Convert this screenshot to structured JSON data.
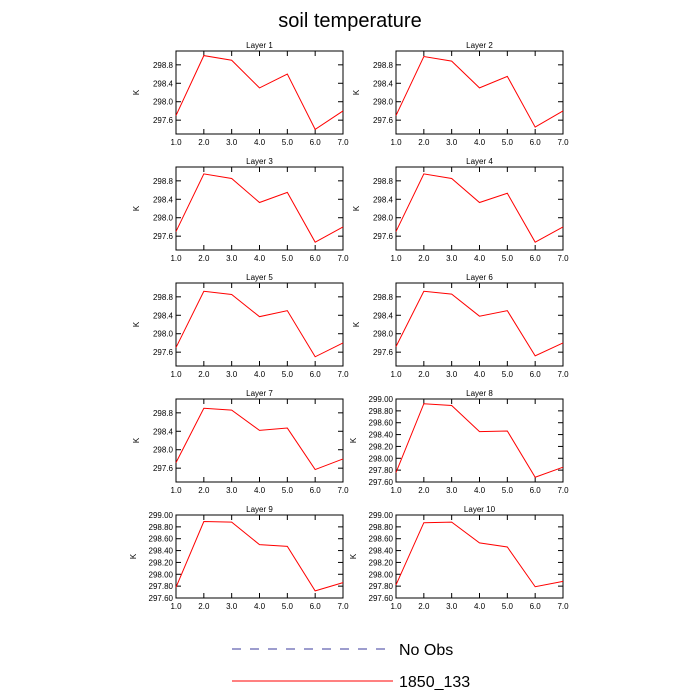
{
  "title": "soil temperature",
  "legend": {
    "items": [
      {
        "label": "No Obs",
        "style": "dashed",
        "color": "#3b3b9e"
      },
      {
        "label": "1850_133",
        "style": "solid",
        "color": "#ff0000"
      }
    ]
  },
  "chart_data": [
    {
      "type": "line",
      "title": "Layer 1",
      "ylabel": "K",
      "x": [
        1.0,
        2.0,
        3.0,
        4.0,
        5.0,
        6.0,
        7.0
      ],
      "xlim": [
        1.0,
        7.0
      ],
      "xticks": [
        "1.0",
        "2.0",
        "3.0",
        "4.0",
        "5.0",
        "6.0",
        "7.0"
      ],
      "ylim": [
        297.3,
        299.1
      ],
      "yticks": [
        297.6,
        298.0,
        298.4,
        298.8
      ],
      "ytick_labels": [
        "297.6",
        "298.0",
        "298.4",
        "298.8"
      ],
      "series": [
        {
          "name": "1850_133",
          "values": [
            297.7,
            299.0,
            298.9,
            298.3,
            298.6,
            297.4,
            297.8
          ]
        }
      ]
    },
    {
      "type": "line",
      "title": "Layer 2",
      "ylabel": "K",
      "x": [
        1.0,
        2.0,
        3.0,
        4.0,
        5.0,
        6.0,
        7.0
      ],
      "xlim": [
        1.0,
        7.0
      ],
      "xticks": [
        "1.0",
        "2.0",
        "3.0",
        "4.0",
        "5.0",
        "6.0",
        "7.0"
      ],
      "ylim": [
        297.3,
        299.1
      ],
      "yticks": [
        297.6,
        298.0,
        298.4,
        298.8
      ],
      "ytick_labels": [
        "297.6",
        "298.0",
        "298.4",
        "298.8"
      ],
      "series": [
        {
          "name": "1850_133",
          "values": [
            297.7,
            298.98,
            298.88,
            298.3,
            298.55,
            297.45,
            297.8
          ]
        }
      ]
    },
    {
      "type": "line",
      "title": "Layer 3",
      "ylabel": "K",
      "x": [
        1.0,
        2.0,
        3.0,
        4.0,
        5.0,
        6.0,
        7.0
      ],
      "xlim": [
        1.0,
        7.0
      ],
      "xticks": [
        "1.0",
        "2.0",
        "3.0",
        "4.0",
        "5.0",
        "6.0",
        "7.0"
      ],
      "ylim": [
        297.3,
        299.1
      ],
      "yticks": [
        297.6,
        298.0,
        298.4,
        298.8
      ],
      "ytick_labels": [
        "297.6",
        "298.0",
        "298.4",
        "298.8"
      ],
      "series": [
        {
          "name": "1850_133",
          "values": [
            297.7,
            298.95,
            298.85,
            298.33,
            298.55,
            297.47,
            297.8
          ]
        }
      ]
    },
    {
      "type": "line",
      "title": "Layer 4",
      "ylabel": "K",
      "x": [
        1.0,
        2.0,
        3.0,
        4.0,
        5.0,
        6.0,
        7.0
      ],
      "xlim": [
        1.0,
        7.0
      ],
      "xticks": [
        "1.0",
        "2.0",
        "3.0",
        "4.0",
        "5.0",
        "6.0",
        "7.0"
      ],
      "ylim": [
        297.3,
        299.1
      ],
      "yticks": [
        297.6,
        298.0,
        298.4,
        298.8
      ],
      "ytick_labels": [
        "297.6",
        "298.0",
        "298.4",
        "298.8"
      ],
      "series": [
        {
          "name": "1850_133",
          "values": [
            297.7,
            298.95,
            298.85,
            298.33,
            298.53,
            297.47,
            297.8
          ]
        }
      ]
    },
    {
      "type": "line",
      "title": "Layer 5",
      "ylabel": "K",
      "x": [
        1.0,
        2.0,
        3.0,
        4.0,
        5.0,
        6.0,
        7.0
      ],
      "xlim": [
        1.0,
        7.0
      ],
      "xticks": [
        "1.0",
        "2.0",
        "3.0",
        "4.0",
        "5.0",
        "6.0",
        "7.0"
      ],
      "ylim": [
        297.3,
        299.1
      ],
      "yticks": [
        297.6,
        298.0,
        298.4,
        298.8
      ],
      "ytick_labels": [
        "297.6",
        "298.0",
        "298.4",
        "298.8"
      ],
      "series": [
        {
          "name": "1850_133",
          "values": [
            297.7,
            298.92,
            298.85,
            298.37,
            298.5,
            297.5,
            297.8
          ]
        }
      ]
    },
    {
      "type": "line",
      "title": "Layer 6",
      "ylabel": "K",
      "x": [
        1.0,
        2.0,
        3.0,
        4.0,
        5.0,
        6.0,
        7.0
      ],
      "xlim": [
        1.0,
        7.0
      ],
      "xticks": [
        "1.0",
        "2.0",
        "3.0",
        "4.0",
        "5.0",
        "6.0",
        "7.0"
      ],
      "ylim": [
        297.3,
        299.1
      ],
      "yticks": [
        297.6,
        298.0,
        298.4,
        298.8
      ],
      "ytick_labels": [
        "297.6",
        "298.0",
        "298.4",
        "298.8"
      ],
      "series": [
        {
          "name": "1850_133",
          "values": [
            297.72,
            298.92,
            298.86,
            298.38,
            298.5,
            297.52,
            297.8
          ]
        }
      ]
    },
    {
      "type": "line",
      "title": "Layer 7",
      "ylabel": "K",
      "x": [
        1.0,
        2.0,
        3.0,
        4.0,
        5.0,
        6.0,
        7.0
      ],
      "xlim": [
        1.0,
        7.0
      ],
      "xticks": [
        "1.0",
        "2.0",
        "3.0",
        "4.0",
        "5.0",
        "6.0",
        "7.0"
      ],
      "ylim": [
        297.3,
        299.1
      ],
      "yticks": [
        297.6,
        298.0,
        298.4,
        298.8
      ],
      "ytick_labels": [
        "297.6",
        "298.0",
        "298.4",
        "298.8"
      ],
      "series": [
        {
          "name": "1850_133",
          "values": [
            297.72,
            298.9,
            298.86,
            298.42,
            298.47,
            297.57,
            297.8
          ]
        }
      ]
    },
    {
      "type": "line",
      "title": "Layer 8",
      "ylabel": "K",
      "x": [
        1.0,
        2.0,
        3.0,
        4.0,
        5.0,
        6.0,
        7.0
      ],
      "xlim": [
        1.0,
        7.0
      ],
      "xticks": [
        "1.0",
        "2.0",
        "3.0",
        "4.0",
        "5.0",
        "6.0",
        "7.0"
      ],
      "ylim": [
        297.6,
        299.0
      ],
      "yticks": [
        297.6,
        297.8,
        298.0,
        298.2,
        298.4,
        298.6,
        298.8,
        299.0
      ],
      "ytick_labels": [
        "297.60",
        "297.80",
        "298.00",
        "298.20",
        "298.40",
        "298.60",
        "298.80",
        "299.00"
      ],
      "series": [
        {
          "name": "1850_133",
          "values": [
            297.76,
            298.92,
            298.89,
            298.45,
            298.46,
            297.68,
            297.85
          ]
        }
      ]
    },
    {
      "type": "line",
      "title": "Layer 9",
      "ylabel": "K",
      "x": [
        1.0,
        2.0,
        3.0,
        4.0,
        5.0,
        6.0,
        7.0
      ],
      "xlim": [
        1.0,
        7.0
      ],
      "xticks": [
        "1.0",
        "2.0",
        "3.0",
        "4.0",
        "5.0",
        "6.0",
        "7.0"
      ],
      "ylim": [
        297.6,
        299.0
      ],
      "yticks": [
        297.6,
        297.8,
        298.0,
        298.2,
        298.4,
        298.6,
        298.8,
        299.0
      ],
      "ytick_labels": [
        "297.60",
        "297.80",
        "298.00",
        "298.20",
        "298.40",
        "298.60",
        "298.80",
        "299.00"
      ],
      "series": [
        {
          "name": "1850_133",
          "values": [
            297.78,
            298.89,
            298.88,
            298.5,
            298.47,
            297.72,
            297.86
          ]
        }
      ]
    },
    {
      "type": "line",
      "title": "Layer 10",
      "ylabel": "K",
      "x": [
        1.0,
        2.0,
        3.0,
        4.0,
        5.0,
        6.0,
        7.0
      ],
      "xlim": [
        1.0,
        7.0
      ],
      "xticks": [
        "1.0",
        "2.0",
        "3.0",
        "4.0",
        "5.0",
        "6.0",
        "7.0"
      ],
      "ylim": [
        297.6,
        299.0
      ],
      "yticks": [
        297.6,
        297.8,
        298.0,
        298.2,
        298.4,
        298.6,
        298.8,
        299.0
      ],
      "ytick_labels": [
        "297.60",
        "297.80",
        "298.00",
        "298.20",
        "298.40",
        "298.60",
        "298.80",
        "299.00"
      ],
      "series": [
        {
          "name": "1850_133",
          "values": [
            297.82,
            298.87,
            298.88,
            298.53,
            298.46,
            297.79,
            297.88
          ]
        }
      ]
    }
  ]
}
